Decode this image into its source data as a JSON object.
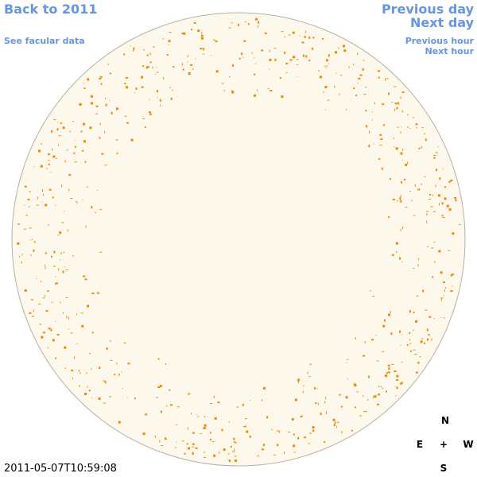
{
  "nav": {
    "back_year": "Back to 2011",
    "facular_data": "See facular data",
    "previous_day": "Previous day",
    "next_day": "Next day",
    "previous_hour": "Previous hour",
    "next_hour": "Next hour"
  },
  "timestamp": "2011-05-07T10:59:08",
  "compass": {
    "north": "N",
    "east": "E",
    "center": "+",
    "west": "W",
    "south": "S"
  }
}
